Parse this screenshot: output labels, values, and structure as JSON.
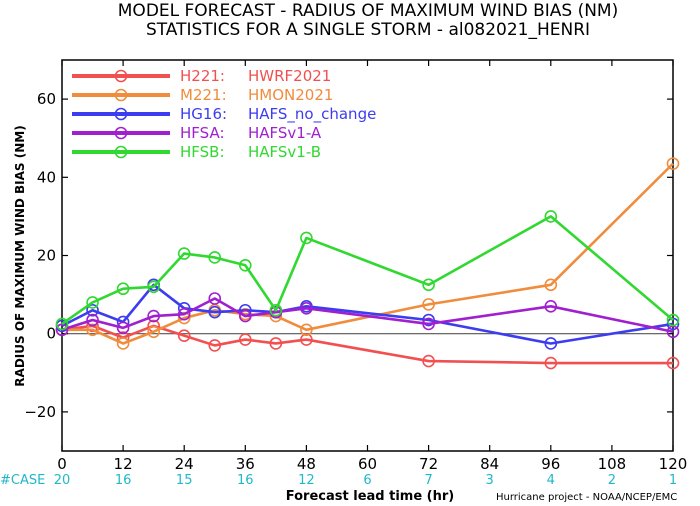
{
  "chart_data": {
    "type": "line",
    "title_line1": "MODEL FORECAST - RADIUS OF MAXIMUM WIND BIAS (NM)",
    "title_line2": "STATISTICS FOR A SINGLE STORM - al082021_HENRI",
    "ylabel": "RADIUS OF MAXIMUM WIND BIAS (NM)",
    "xlabel": "Forecast lead time (hr)",
    "xlim": [
      0,
      120
    ],
    "ylim": [
      -30,
      70
    ],
    "x_ticks": [
      0,
      12,
      24,
      36,
      48,
      60,
      72,
      84,
      96,
      108,
      120
    ],
    "y_ticks": [
      -20,
      0,
      20,
      40,
      60
    ],
    "zero_line": true,
    "legend_position": "top-left",
    "case_label": "#CASE",
    "case_x": [
      0,
      12,
      24,
      36,
      48,
      60,
      72,
      84,
      96,
      108,
      120
    ],
    "case_counts": [
      "20",
      "16",
      "15",
      "16",
      "12",
      "6",
      "7",
      "3",
      "4",
      "2",
      "1"
    ],
    "credit": "Hurricane project - NOAA/NCEP/EMC",
    "series": [
      {
        "name": "H221:",
        "desc": "HWRF2021",
        "color": "#f25050",
        "x": [
          0,
          6,
          12,
          18,
          24,
          30,
          36,
          42,
          48,
          72,
          96,
          120
        ],
        "y": [
          1.0,
          2.0,
          -1.0,
          2.0,
          -0.5,
          -3.0,
          -1.5,
          -2.5,
          -1.5,
          -7.0,
          -7.5,
          -7.5
        ]
      },
      {
        "name": "M221:",
        "desc": "HMON2021",
        "color": "#f08c3c",
        "x": [
          0,
          6,
          12,
          18,
          24,
          30,
          36,
          42,
          48,
          72,
          96,
          120
        ],
        "y": [
          1.0,
          1.0,
          -2.5,
          0.5,
          4.0,
          6.0,
          5.0,
          4.5,
          1.0,
          7.5,
          12.5,
          43.5
        ]
      },
      {
        "name": "HG16:",
        "desc": "HAFS_no_change",
        "color": "#3c3cf0",
        "x": [
          0,
          6,
          12,
          18,
          24,
          30,
          36,
          42,
          48,
          72,
          96,
          120
        ],
        "y": [
          2.0,
          6.0,
          3.0,
          12.5,
          6.5,
          5.5,
          6.0,
          5.5,
          7.0,
          3.5,
          -2.5,
          2.5
        ]
      },
      {
        "name": "HFSA:",
        "desc": "HAFSv1-A",
        "color": "#a020d0",
        "x": [
          0,
          6,
          12,
          18,
          24,
          30,
          36,
          42,
          48,
          72,
          96,
          120
        ],
        "y": [
          1.0,
          3.5,
          1.5,
          4.5,
          5.0,
          9.0,
          4.5,
          5.5,
          6.5,
          2.5,
          7.0,
          0.5
        ]
      },
      {
        "name": "HFSB:",
        "desc": "HAFSv1-B",
        "color": "#30d830",
        "x": [
          0,
          6,
          12,
          18,
          24,
          30,
          36,
          42,
          48,
          72,
          96,
          120
        ],
        "y": [
          2.5,
          8.0,
          11.5,
          12.0,
          20.5,
          19.5,
          17.5,
          6.0,
          24.5,
          12.5,
          30.0,
          3.5
        ]
      }
    ]
  }
}
